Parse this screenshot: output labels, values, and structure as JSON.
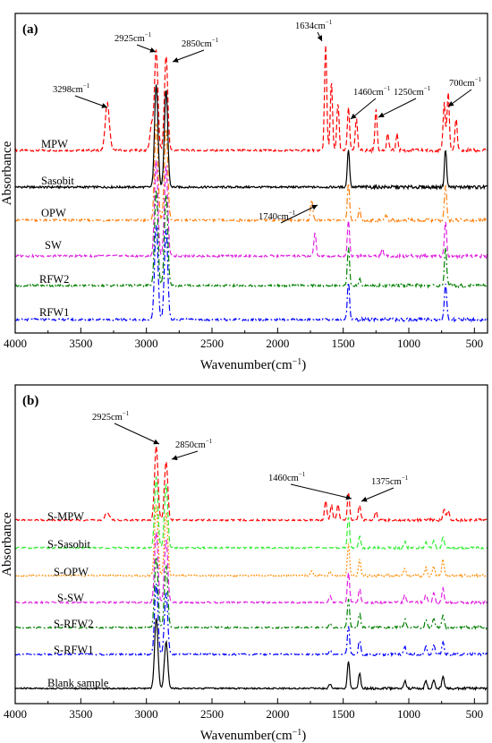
{
  "chart_data": [
    {
      "panel": "(a)",
      "type": "line",
      "xlabel": "Wavenumber(cm",
      "xlabel_sup": "−1",
      "xlabel_tail": ")",
      "ylabel": "Absorbance",
      "xlim": [
        4000,
        400
      ],
      "x_reversed": true,
      "x_ticks": [
        4000,
        3500,
        3000,
        2500,
        2000,
        1500,
        1000,
        500
      ],
      "y_ticks_shown": false,
      "grid": false,
      "series": [
        {
          "name": "MPW",
          "color": "#ff0000",
          "dash": "dashed",
          "peaks": [
            [
              3298,
              0.45
            ],
            [
              2960,
              0.25
            ],
            [
              2925,
              0.95
            ],
            [
              2850,
              0.9
            ],
            [
              1634,
              1.0
            ],
            [
              1590,
              0.65
            ],
            [
              1540,
              0.45
            ],
            [
              1460,
              0.4
            ],
            [
              1400,
              0.3
            ],
            [
              1250,
              0.38
            ],
            [
              1160,
              0.15
            ],
            [
              1090,
              0.15
            ],
            [
              730,
              0.45
            ],
            [
              700,
              0.55
            ],
            [
              640,
              0.3
            ]
          ]
        },
        {
          "name": "Sasobit",
          "color": "#000000",
          "dash": "solid",
          "peaks": [
            [
              2925,
              0.98
            ],
            [
              2850,
              0.92
            ],
            [
              1460,
              0.36
            ],
            [
              720,
              0.36
            ]
          ]
        },
        {
          "name": "OPW",
          "color": "#ff7f0e",
          "dash": "dashdot",
          "peaks": [
            [
              2925,
              0.92
            ],
            [
              2850,
              0.88
            ],
            [
              1740,
              0.2
            ],
            [
              1460,
              0.35
            ],
            [
              1375,
              0.1
            ],
            [
              1170,
              0.05
            ],
            [
              720,
              0.33
            ]
          ]
        },
        {
          "name": "SW",
          "color": "#e020e0",
          "dash": "dashed",
          "peaks": [
            [
              2925,
              0.9
            ],
            [
              2850,
              0.85
            ],
            [
              1715,
              0.22
            ],
            [
              1460,
              0.34
            ],
            [
              1200,
              0.06
            ],
            [
              720,
              0.33
            ]
          ]
        },
        {
          "name": "RFW2",
          "color": "#008000",
          "dash": "dashdot",
          "peaks": [
            [
              2925,
              0.9
            ],
            [
              2850,
              0.86
            ],
            [
              1460,
              0.36
            ],
            [
              1375,
              0.06
            ],
            [
              720,
              0.35
            ]
          ]
        },
        {
          "name": "RFW1",
          "color": "#0000ff",
          "dash": "dashdot",
          "peaks": [
            [
              2925,
              0.9
            ],
            [
              2850,
              0.86
            ],
            [
              1460,
              0.36
            ],
            [
              720,
              0.35
            ]
          ]
        }
      ],
      "annotations": [
        {
          "label": "2925cm",
          "sup": "−1",
          "x": 2925
        },
        {
          "label": "2850cm",
          "sup": "−1",
          "x": 2850
        },
        {
          "label": "1634cm",
          "sup": "−1",
          "x": 1634
        },
        {
          "label": "3298cm",
          "sup": "−1",
          "x": 3298
        },
        {
          "label": "1460cm",
          "sup": "−1",
          "x": 1460
        },
        {
          "label": "1250cm",
          "sup": "−1",
          "x": 1250
        },
        {
          "label": "700cm",
          "sup": "−1",
          "x": 700
        },
        {
          "label": "1740cm",
          "sup": "−1",
          "x": 1740
        }
      ]
    },
    {
      "panel": "(b)",
      "type": "line",
      "xlabel": "Wavenumber(cm",
      "xlabel_sup": "−1",
      "xlabel_tail": ")",
      "ylabel": "Absorbance",
      "xlim": [
        4000,
        400
      ],
      "x_reversed": true,
      "x_ticks": [
        4000,
        3500,
        3000,
        2500,
        2000,
        1500,
        1000,
        500
      ],
      "y_ticks_shown": false,
      "grid": false,
      "series": [
        {
          "name": "S-MPW",
          "color": "#ff0000",
          "dash": "dashed",
          "peaks": [
            [
              3298,
              0.1
            ],
            [
              2925,
              0.95
            ],
            [
              2850,
              0.75
            ],
            [
              1634,
              0.25
            ],
            [
              1590,
              0.2
            ],
            [
              1540,
              0.2
            ],
            [
              1460,
              0.35
            ],
            [
              1375,
              0.2
            ],
            [
              1250,
              0.1
            ],
            [
              730,
              0.15
            ],
            [
              700,
              0.12
            ]
          ]
        },
        {
          "name": "S-Sasobit",
          "color": "#33ee33",
          "dash": "dashed",
          "peaks": [
            [
              2925,
              0.9
            ],
            [
              2850,
              0.8
            ],
            [
              1460,
              0.4
            ],
            [
              1375,
              0.15
            ],
            [
              1030,
              0.08
            ],
            [
              870,
              0.08
            ],
            [
              810,
              0.1
            ],
            [
              740,
              0.15
            ]
          ]
        },
        {
          "name": "S-OPW",
          "color": "#ff8c00",
          "dash": "dotted",
          "peaks": [
            [
              2925,
              0.9
            ],
            [
              2850,
              0.8
            ],
            [
              1740,
              0.06
            ],
            [
              1600,
              0.05
            ],
            [
              1460,
              0.4
            ],
            [
              1375,
              0.2
            ],
            [
              1030,
              0.1
            ],
            [
              870,
              0.1
            ],
            [
              810,
              0.12
            ],
            [
              740,
              0.2
            ]
          ]
        },
        {
          "name": "S-SW",
          "color": "#e020e0",
          "dash": "dashed",
          "peaks": [
            [
              2925,
              0.9
            ],
            [
              2850,
              0.8
            ],
            [
              1600,
              0.08
            ],
            [
              1460,
              0.38
            ],
            [
              1375,
              0.18
            ],
            [
              1030,
              0.1
            ],
            [
              870,
              0.1
            ],
            [
              810,
              0.12
            ],
            [
              740,
              0.17
            ]
          ]
        },
        {
          "name": "S-RFW2",
          "color": "#008000",
          "dash": "dashdot",
          "peaks": [
            [
              2925,
              0.9
            ],
            [
              2850,
              0.78
            ],
            [
              1600,
              0.06
            ],
            [
              1460,
              0.36
            ],
            [
              1375,
              0.18
            ],
            [
              1030,
              0.1
            ],
            [
              870,
              0.1
            ],
            [
              810,
              0.12
            ],
            [
              740,
              0.16
            ]
          ]
        },
        {
          "name": "S-RFW1",
          "color": "#0000ff",
          "dash": "dashdot",
          "peaks": [
            [
              2925,
              0.9
            ],
            [
              2850,
              0.78
            ],
            [
              1600,
              0.06
            ],
            [
              1460,
              0.36
            ],
            [
              1375,
              0.18
            ],
            [
              1030,
              0.1
            ],
            [
              870,
              0.1
            ],
            [
              810,
              0.12
            ],
            [
              740,
              0.16
            ]
          ]
        },
        {
          "name": "Blank sample",
          "color": "#000000",
          "dash": "solid",
          "peaks": [
            [
              2925,
              0.9
            ],
            [
              2850,
              0.6
            ],
            [
              1600,
              0.06
            ],
            [
              1460,
              0.35
            ],
            [
              1375,
              0.2
            ],
            [
              1030,
              0.1
            ],
            [
              870,
              0.1
            ],
            [
              810,
              0.12
            ],
            [
              740,
              0.16
            ]
          ]
        }
      ],
      "annotations": [
        {
          "label": "2925cm",
          "sup": "−1",
          "x": 2925
        },
        {
          "label": "2850cm",
          "sup": "−1",
          "x": 2850
        },
        {
          "label": "1460cm",
          "sup": "−1",
          "x": 1460
        },
        {
          "label": "1375cm",
          "sup": "−1",
          "x": 1375
        }
      ]
    }
  ]
}
